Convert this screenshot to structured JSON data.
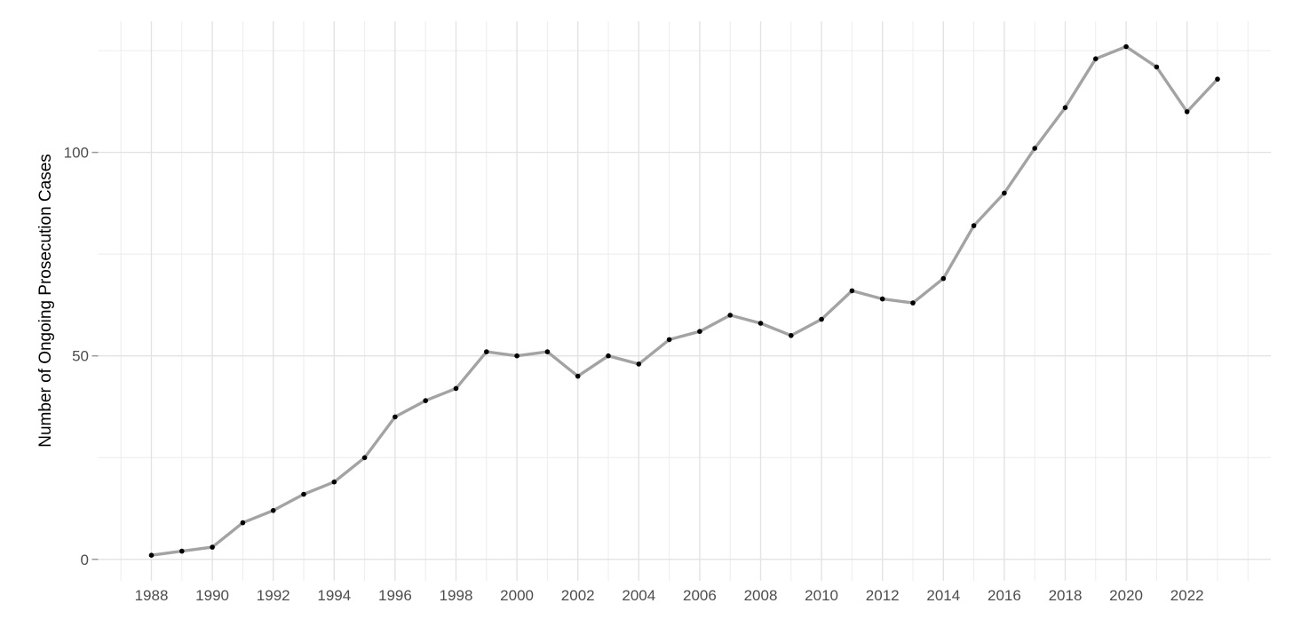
{
  "chart_data": {
    "type": "line",
    "title": "",
    "xlabel": "",
    "ylabel": "Number of Ongoing Prosecution Cases",
    "x": [
      1988,
      1989,
      1990,
      1991,
      1992,
      1993,
      1994,
      1995,
      1996,
      1997,
      1998,
      1999,
      2000,
      2001,
      2002,
      2003,
      2004,
      2005,
      2006,
      2007,
      2008,
      2009,
      2010,
      2011,
      2012,
      2013,
      2014,
      2015,
      2016,
      2017,
      2018,
      2019,
      2020,
      2021,
      2022,
      2023
    ],
    "values": [
      1,
      2,
      3,
      9,
      12,
      16,
      19,
      25,
      35,
      39,
      42,
      51,
      50,
      51,
      45,
      50,
      48,
      54,
      56,
      60,
      58,
      55,
      59,
      66,
      64,
      63,
      69,
      82,
      90,
      101,
      111,
      123,
      126,
      121,
      110,
      118
    ],
    "x_tick_labels": [
      "1988",
      "1990",
      "1992",
      "1994",
      "1996",
      "1998",
      "2000",
      "2002",
      "2004",
      "2006",
      "2008",
      "2010",
      "2012",
      "2014",
      "2016",
      "2018",
      "2020",
      "2022"
    ],
    "y_tick_labels": [
      "0",
      "50",
      "100"
    ],
    "y_major_gridlines": [
      0,
      50,
      100
    ],
    "y_minor_gridlines": [
      25,
      75,
      125
    ],
    "xlim": [
      1986.25,
      2024.75
    ],
    "ylim": [
      -5.25,
      132.25
    ],
    "grid": true,
    "legend_position": "none",
    "colors": {
      "line": "#A3A3A3",
      "point": "#000000",
      "grid_major": "#E3E3E3",
      "grid_minor": "#ECECEC",
      "axis_tick": "#999999",
      "tick_text": "#4D4D4D",
      "axis_title": "#000000",
      "background": "#FFFFFF"
    }
  }
}
